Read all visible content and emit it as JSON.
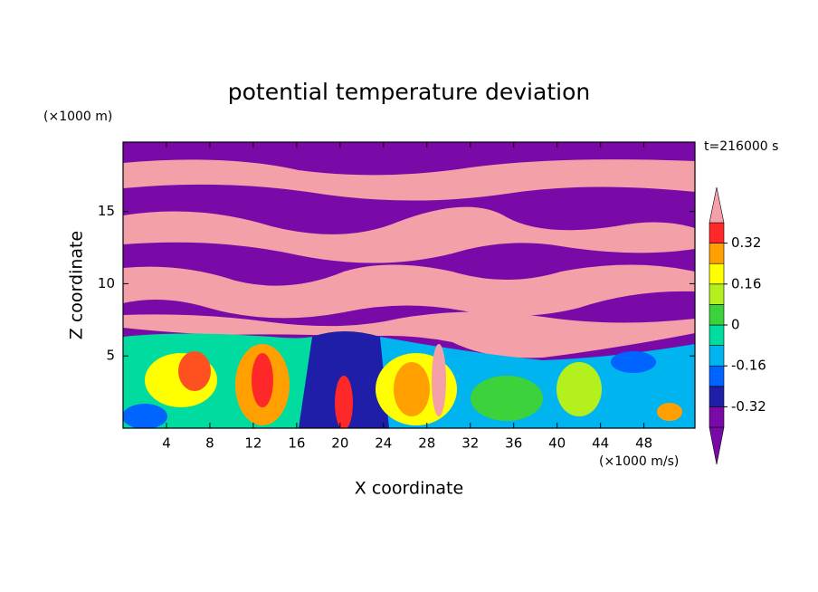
{
  "chart_data": {
    "type": "contour",
    "title": "potential temperature deviation",
    "x_label": "X coordinate",
    "y_label": "Z coordinate",
    "x_unit": "(×1000 m/s)",
    "y_unit": "(×1000 m)",
    "time_label": "t=216000 s",
    "xlim": [
      0,
      52.7
    ],
    "ylim": [
      0,
      19.8
    ],
    "xticks": [
      4,
      8,
      12,
      16,
      20,
      24,
      28,
      32,
      36,
      40,
      44,
      48
    ],
    "yticks": [
      5,
      10,
      15
    ],
    "colorbar": {
      "levels": [
        -0.4,
        -0.32,
        -0.24,
        -0.16,
        -0.08,
        0,
        0.08,
        0.16,
        0.24,
        0.32,
        0.4
      ],
      "colors": [
        "#7a0aa8",
        "#7a0aa8",
        "#1e1ea8",
        "#0064ff",
        "#00b4f0",
        "#00dca0",
        "#3cd23c",
        "#b4f01e",
        "#ffff00",
        "#ffa000",
        "#ff2828",
        "#f4a0a8"
      ],
      "ticks": [
        0.32,
        0.16,
        0,
        -0.16,
        -0.32
      ]
    }
  }
}
